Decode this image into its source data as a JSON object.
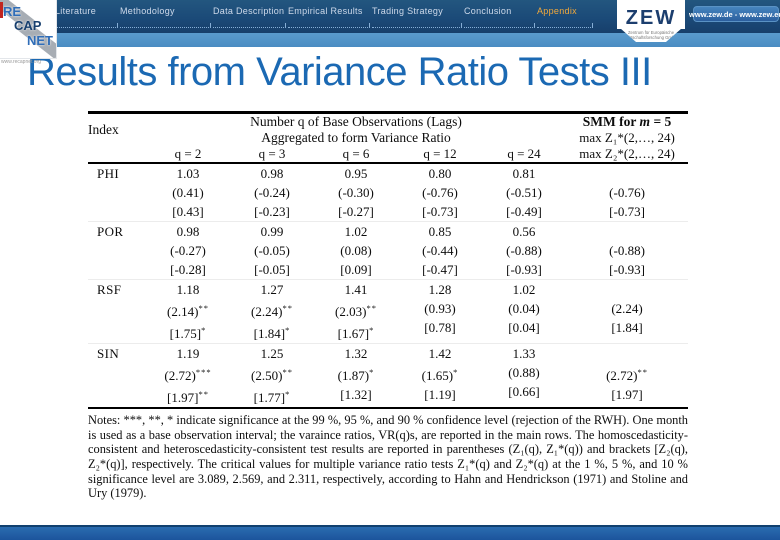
{
  "header": {
    "nav": [
      "Outline",
      "Literature",
      "Methodology",
      "Data Description",
      "Empirical Results",
      "Trading Strategy",
      "Conclusion",
      "Appendix"
    ],
    "zew": {
      "logo_text": "ZEW",
      "tagline": "Zentrum für Europäische Wirtschaftsforschung GmbH",
      "website": "www.zew.de - www.zew.eu"
    },
    "recapnet": {
      "re": "RE",
      "cap": "CAP",
      "net": "NET",
      "url": "www.recapnet.org"
    }
  },
  "title": "Results from Variance Ratio Tests III",
  "colors": {
    "header_blue": "#1b4a78",
    "strip_blue": "#4a8cc2",
    "title_blue": "#1b69b3",
    "appendix_orange": "#f2a93b",
    "footer_blue": "#1c549c",
    "accent_red": "#c2251f"
  },
  "table": {
    "index_header": "Index",
    "group_header_line1": "Number q of Base Observations (Lags)",
    "group_header_line2": "Aggregated to form Variance Ratio",
    "smm_title_prefix": "SMM for ",
    "smm_title_var": "m",
    "smm_title_suffix": " = 5",
    "smm_header_line2": "max Z₁*(2,…, 24)",
    "smm_header_line3": "max Z₂*(2,…, 24)",
    "q_labels": [
      "q = 2",
      "q = 3",
      "q = 6",
      "q = 12",
      "q = 24"
    ],
    "rows": [
      {
        "index": "PHI",
        "cells": [
          {
            "vr": "1.03",
            "z1": "(0.41)",
            "z1_sig": "",
            "z2": "[0.43]",
            "z2_sig": ""
          },
          {
            "vr": "0.98",
            "z1": "(-0.24)",
            "z1_sig": "",
            "z2": "[-0.23]",
            "z2_sig": ""
          },
          {
            "vr": "0.95",
            "z1": "(-0.30)",
            "z1_sig": "",
            "z2": "[-0.27]",
            "z2_sig": ""
          },
          {
            "vr": "0.80",
            "z1": "(-0.76)",
            "z1_sig": "",
            "z2": "[-0.73]",
            "z2_sig": ""
          },
          {
            "vr": "0.81",
            "z1": "(-0.51)",
            "z1_sig": "",
            "z2": "[-0.49]",
            "z2_sig": ""
          }
        ],
        "smm": {
          "z1": "(-0.76)",
          "z1_sig": "",
          "z2": "[-0.73]",
          "z2_sig": ""
        }
      },
      {
        "index": "POR",
        "cells": [
          {
            "vr": "0.98",
            "z1": "(-0.27)",
            "z1_sig": "",
            "z2": "[-0.28]",
            "z2_sig": ""
          },
          {
            "vr": "0.99",
            "z1": "(-0.05)",
            "z1_sig": "",
            "z2": "[-0.05]",
            "z2_sig": ""
          },
          {
            "vr": "1.02",
            "z1": "(0.08)",
            "z1_sig": "",
            "z2": "[0.09]",
            "z2_sig": ""
          },
          {
            "vr": "0.85",
            "z1": "(-0.44)",
            "z1_sig": "",
            "z2": "[-0.47]",
            "z2_sig": ""
          },
          {
            "vr": "0.56",
            "z1": "(-0.88)",
            "z1_sig": "",
            "z2": "[-0.93]",
            "z2_sig": ""
          }
        ],
        "smm": {
          "z1": "(-0.88)",
          "z1_sig": "",
          "z2": "[-0.93]",
          "z2_sig": ""
        }
      },
      {
        "index": "RSF",
        "cells": [
          {
            "vr": "1.18",
            "z1": "(2.14)",
            "z1_sig": "**",
            "z2": "[1.75]",
            "z2_sig": "*"
          },
          {
            "vr": "1.27",
            "z1": "(2.24)",
            "z1_sig": "**",
            "z2": "[1.84]",
            "z2_sig": "*"
          },
          {
            "vr": "1.41",
            "z1": "(2.03)",
            "z1_sig": "**",
            "z2": "[1.67]",
            "z2_sig": "*"
          },
          {
            "vr": "1.28",
            "z1": "(0.93)",
            "z1_sig": "",
            "z2": "[0.78]",
            "z2_sig": ""
          },
          {
            "vr": "1.02",
            "z1": "(0.04)",
            "z1_sig": "",
            "z2": "[0.04]",
            "z2_sig": ""
          }
        ],
        "smm": {
          "z1": "(2.24)",
          "z1_sig": "",
          "z2": "[1.84]",
          "z2_sig": ""
        }
      },
      {
        "index": "SIN",
        "cells": [
          {
            "vr": "1.19",
            "z1": "(2.72)",
            "z1_sig": "***",
            "z2": "[1.97]",
            "z2_sig": "**"
          },
          {
            "vr": "1.25",
            "z1": "(2.50)",
            "z1_sig": "**",
            "z2": "[1.77]",
            "z2_sig": "*"
          },
          {
            "vr": "1.32",
            "z1": "(1.87)",
            "z1_sig": "*",
            "z2": "[1.32]",
            "z2_sig": ""
          },
          {
            "vr": "1.42",
            "z1": "(1.65)",
            "z1_sig": "*",
            "z2": "[1.19]",
            "z2_sig": ""
          },
          {
            "vr": "1.33",
            "z1": "(0.88)",
            "z1_sig": "",
            "z2": "[0.66]",
            "z2_sig": ""
          }
        ],
        "smm": {
          "z1": "(2.72)",
          "z1_sig": "**",
          "z2": "[1.97]",
          "z2_sig": ""
        }
      }
    ]
  },
  "notes": "Notes: ***, **, * indicate significance at the 99 %, 95 %, and 90 % confidence level (rejection of the RWH). One month is used as a base observation interval; the varaince ratios, VR(q)s, are reported in the main rows. The homoscedasticity-consistent and heteroscedasticity-consistent test results are reported in parentheses (Z₁(q), Z₁*(q)) and brackets [Z₂(q), Z₂*(q)], respectively. The critical values for multiple variance ratio tests Z₁*(q) and Z₂*(q) at the 1 %, 5 %, and 10 % significance level are 3.089, 2.569, and 2.311, respectively, according to Hahn and Hendrickson (1971) and Stoline and Ury (1979)."
}
